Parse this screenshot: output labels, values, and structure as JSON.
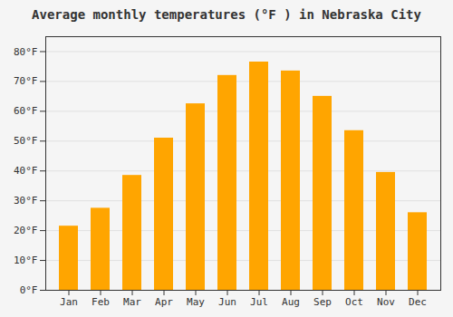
{
  "chart_data": {
    "type": "bar",
    "title": "Average monthly temperatures (°F ) in Nebraska City",
    "categories": [
      "Jan",
      "Feb",
      "Mar",
      "Apr",
      "May",
      "Jun",
      "Jul",
      "Aug",
      "Sep",
      "Oct",
      "Nov",
      "Dec"
    ],
    "values": [
      21.5,
      27.5,
      38.5,
      51.0,
      62.5,
      72.0,
      76.5,
      73.5,
      65.0,
      53.5,
      39.5,
      26.0
    ],
    "color": "#FFA500",
    "ylim": [
      0,
      85
    ],
    "yticks": [
      {
        "value": 0,
        "label": "0°F"
      },
      {
        "value": 10,
        "label": "10°F"
      },
      {
        "value": 20,
        "label": "20°F"
      },
      {
        "value": 30,
        "label": "30°F"
      },
      {
        "value": 40,
        "label": "40°F"
      },
      {
        "value": 50,
        "label": "50°F"
      },
      {
        "value": 60,
        "label": "60°F"
      },
      {
        "value": 70,
        "label": "70°F"
      },
      {
        "value": 80,
        "label": "80°F"
      }
    ],
    "grid": true
  }
}
